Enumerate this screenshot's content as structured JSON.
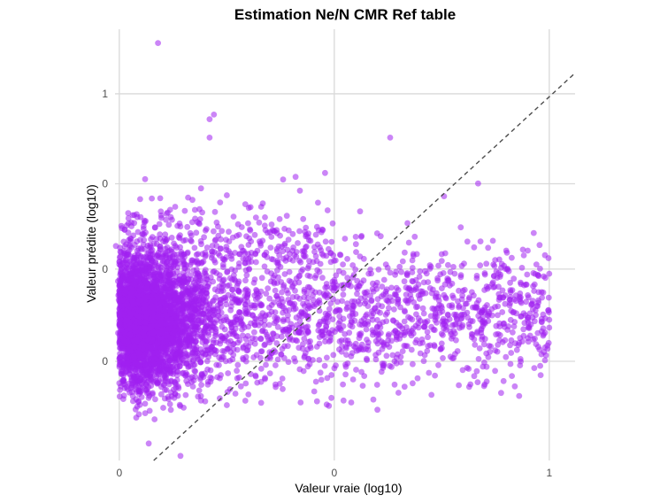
{
  "chart_data": {
    "type": "scatter",
    "title": "Estimation Ne/N CMR Ref table",
    "xlabel": "Valeur vraie (log10)",
    "ylabel": "Valeur prédite (log10)",
    "xlim": [
      -0.01,
      1.06
    ],
    "ylim": [
      -0.43,
      1.44
    ],
    "x_ticks": [
      {
        "value": 0.0,
        "label": "0"
      },
      {
        "value": 0.5,
        "label": "0"
      },
      {
        "value": 1.0,
        "label": "1"
      }
    ],
    "y_ticks": [
      {
        "value": 0.0,
        "label": "0"
      },
      {
        "value": 0.4,
        "label": "0"
      },
      {
        "value": 0.77,
        "label": "0"
      },
      {
        "value": 1.16,
        "label": "1"
      }
    ],
    "grid": true,
    "point_color": "#a020f0",
    "point_opacity": 0.55,
    "reference_line": {
      "style": "dashed",
      "color": "#4d4d4d",
      "x": [
        0.08,
        1.06
      ],
      "y": [
        -0.43,
        1.25
      ]
    },
    "series": [
      {
        "approximate_points": [
          [
            0.09,
            1.38
          ],
          [
            0.21,
            0.97
          ],
          [
            0.21,
            1.05
          ],
          [
            0.22,
            1.07
          ],
          [
            0.63,
            0.97
          ],
          [
            0.06,
            0.79
          ],
          [
            0.11,
            0.64
          ],
          [
            0.13,
            0.67
          ],
          [
            0.16,
            0.71
          ],
          [
            0.17,
            0.7
          ],
          [
            0.19,
            0.75
          ],
          [
            0.25,
            0.72
          ],
          [
            0.33,
            0.67
          ],
          [
            0.41,
            0.8
          ],
          [
            0.42,
            0.74
          ],
          [
            0.56,
            0.65
          ],
          [
            0.84,
            0.52
          ],
          [
            0.9,
            0.48
          ],
          [
            0.95,
            0.48
          ],
          [
            0.99,
            0.46
          ],
          [
            0.78,
            0.38
          ],
          [
            0.87,
            0.42
          ],
          [
            0.97,
            0.42
          ],
          [
            1.0,
            0.38
          ],
          [
            0.52,
            0.42
          ],
          [
            0.58,
            0.38
          ],
          [
            0.69,
            0.32
          ],
          [
            0.74,
            0.36
          ],
          [
            0.79,
            0.24
          ],
          [
            0.88,
            0.2
          ],
          [
            0.93,
            0.08
          ],
          [
            0.99,
            0.06
          ],
          [
            0.64,
            0.0
          ],
          [
            0.72,
            -0.05
          ],
          [
            0.85,
            -0.1
          ],
          [
            0.93,
            -0.15
          ],
          [
            0.98,
            -0.06
          ],
          [
            0.47,
            -0.08
          ],
          [
            0.52,
            -0.1
          ],
          [
            0.38,
            -0.12
          ],
          [
            0.33,
            -0.18
          ],
          [
            0.27,
            -0.14
          ],
          [
            0.25,
            -0.19
          ],
          [
            0.19,
            -0.17
          ],
          [
            0.13,
            -0.14
          ],
          [
            0.07,
            -0.15
          ],
          [
            0.05,
            -0.13
          ],
          [
            0.01,
            -0.08
          ],
          [
            0.0,
            0.29
          ],
          [
            -0.01,
            0.5
          ],
          [
            0.0,
            0.42
          ],
          [
            0.04,
            0.2
          ],
          [
            0.08,
            0.3
          ],
          [
            0.12,
            0.1
          ],
          [
            0.2,
            0.38
          ],
          [
            0.3,
            0.15
          ],
          [
            0.44,
            0.24
          ],
          [
            0.6,
            0.15
          ],
          [
            0.68,
            0.05
          ],
          [
            0.75,
            0.12
          ],
          [
            0.82,
            0.3
          ],
          [
            0.91,
            0.3
          ],
          [
            0.96,
            0.25
          ],
          [
            1.0,
            0.18
          ],
          [
            0.55,
            0.54
          ],
          [
            0.62,
            0.42
          ],
          [
            0.47,
            0.56
          ],
          [
            0.35,
            0.56
          ]
        ]
      }
    ]
  }
}
